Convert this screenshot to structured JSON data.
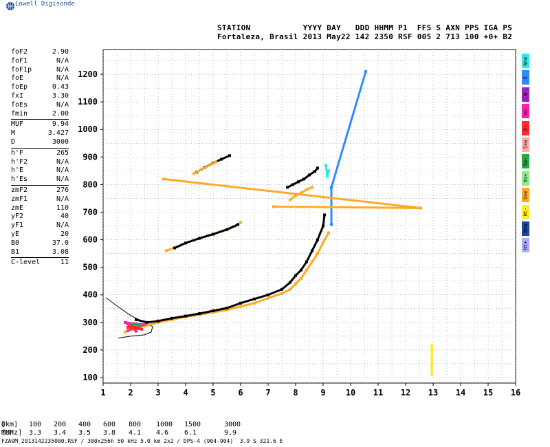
{
  "brand": {
    "name": "Lowell Digisonde"
  },
  "header": {
    "line1": "STATION           YYYY DAY   DDD HHMM P1  FFS S AXN PPS IGA PS",
    "line2": "Fortaleza, Brasil 2013 May22 142 2350 RSF 005 2 713 100 +0+ B2"
  },
  "params": {
    "group1": [
      {
        "label": "foF2",
        "value": "2.90"
      },
      {
        "label": "foF1",
        "value": "N/A"
      },
      {
        "label": "foF1p",
        "value": "N/A"
      },
      {
        "label": "foE",
        "value": "N/A"
      },
      {
        "label": "foEp",
        "value": "0.43"
      },
      {
        "label": "fxI",
        "value": "3.30"
      },
      {
        "label": "foEs",
        "value": "N/A"
      },
      {
        "label": "fmin",
        "value": "2.00"
      }
    ],
    "group2": [
      {
        "label": "MUF",
        "value": "9.94"
      },
      {
        "label": "M",
        "value": "3.427"
      },
      {
        "label": "D",
        "value": "3000"
      }
    ],
    "group3": [
      {
        "label": "h'F",
        "value": "265"
      },
      {
        "label": "h'F2",
        "value": "N/A"
      },
      {
        "label": "h'E",
        "value": "N/A"
      },
      {
        "label": "h'Es",
        "value": "N/A"
      }
    ],
    "group4": [
      {
        "label": "zmF2",
        "value": "276"
      },
      {
        "label": "zmF1",
        "value": "N/A"
      },
      {
        "label": "zmE",
        "value": "110"
      },
      {
        "label": "yF2",
        "value": "40"
      },
      {
        "label": "yF1",
        "value": "N/A"
      },
      {
        "label": "yE",
        "value": "20"
      },
      {
        "label": "B0",
        "value": "37.0"
      },
      {
        "label": "B1",
        "value": "3.08"
      }
    ],
    "group5": [
      {
        "label": "C-level",
        "value": "11"
      }
    ]
  },
  "legend": [
    {
      "label": "Nne",
      "color": "#33e6e6"
    },
    {
      "label": "E",
      "color": "#2a8cff"
    },
    {
      "label": "W",
      "color": "#9922bb"
    },
    {
      "label": "Vo-",
      "color": "#ff22aa"
    },
    {
      "label": "X-",
      "color": "#ff2a2a"
    },
    {
      "label": "Ssw",
      "color": "#ffaaaa"
    },
    {
      "label": "Vo-",
      "color": "#22aa44"
    },
    {
      "label": "Vo+",
      "color": "#88ee88"
    },
    {
      "label": "Sse",
      "color": "#ffaa22"
    },
    {
      "label": "Ht-",
      "color": "#ffee22"
    },
    {
      "label": "Nnw",
      "color": "#1a4aa0"
    },
    {
      "label": "Ht+",
      "color": "#aaaaff"
    }
  ],
  "muf_table": {
    "row1": {
      "label": "D",
      "values": [
        "100",
        "200",
        "400",
        "600",
        "800",
        "1000",
        "1500",
        "3000"
      ],
      "unit": "[km]"
    },
    "row2": {
      "label": "MUF",
      "values": [
        "3.3",
        "3.4",
        "3.5",
        "3.8",
        "4.1",
        "4.6",
        "6.1",
        "9.9"
      ],
      "unit": "[MHz]"
    }
  },
  "footer": "FZA0M_2013142235000.RSF / 300x256h 50 kHz 5.0 km 2x2 / DPS-4 (904-904)  3.9 S 321.6 E",
  "colors": {
    "orange": "#ffaa22",
    "yellow": "#ffee22",
    "black": "#000000",
    "cyan": "#33e6e6",
    "blue": "#2a8cff",
    "magenta": "#ff22aa",
    "red": "#ff2a2a",
    "green": "#22aa44",
    "purple": "#9922bb"
  },
  "chart_data": {
    "type": "scatter",
    "xlim": [
      1,
      16
    ],
    "ylim": [
      80,
      1290
    ],
    "x_ticks": [
      1,
      2,
      3,
      4,
      5,
      6,
      7,
      8,
      9,
      10,
      11,
      12,
      13,
      14,
      15,
      16
    ],
    "y_ticks": [
      100,
      200,
      300,
      400,
      500,
      600,
      700,
      800,
      900,
      1000,
      1100,
      1200
    ],
    "grid": true,
    "profile_curve": [
      [
        1.1,
        390
      ],
      [
        1.5,
        360
      ],
      [
        2.0,
        325
      ],
      [
        2.5,
        300
      ],
      [
        2.8,
        285
      ],
      [
        2.75,
        265
      ],
      [
        2.5,
        255
      ],
      [
        2.0,
        250
      ],
      [
        1.55,
        243
      ]
    ],
    "traces": [
      {
        "name": "O-trace F",
        "color": "#ffaa22",
        "points": [
          [
            1.8,
            265
          ],
          [
            2.0,
            272
          ],
          [
            2.3,
            280
          ],
          [
            2.6,
            290
          ],
          [
            3.0,
            300
          ],
          [
            3.5,
            310
          ],
          [
            4.0,
            320
          ],
          [
            4.5,
            328
          ],
          [
            5.0,
            337
          ],
          [
            5.5,
            345
          ],
          [
            6.0,
            358
          ],
          [
            6.5,
            370
          ],
          [
            7.0,
            388
          ],
          [
            7.5,
            405
          ],
          [
            7.8,
            420
          ],
          [
            8.0,
            440
          ],
          [
            8.2,
            460
          ],
          [
            8.4,
            490
          ],
          [
            8.6,
            520
          ],
          [
            8.8,
            550
          ],
          [
            9.0,
            590
          ],
          [
            9.2,
            625
          ]
        ]
      },
      {
        "name": "X-trace F",
        "color": "#000000",
        "points": [
          [
            2.2,
            310
          ],
          [
            2.6,
            300
          ],
          [
            3.0,
            305
          ],
          [
            3.5,
            315
          ],
          [
            4.0,
            323
          ],
          [
            4.5,
            332
          ],
          [
            5.0,
            342
          ],
          [
            5.5,
            352
          ],
          [
            6.0,
            370
          ],
          [
            6.5,
            385
          ],
          [
            7.0,
            400
          ],
          [
            7.5,
            420
          ],
          [
            7.8,
            445
          ],
          [
            8.0,
            470
          ],
          [
            8.2,
            490
          ],
          [
            8.4,
            520
          ],
          [
            8.6,
            560
          ],
          [
            8.8,
            600
          ],
          [
            9.0,
            650
          ],
          [
            9.05,
            690
          ]
        ]
      },
      {
        "name": "2F O",
        "color": "#ffaa22",
        "points": [
          [
            3.3,
            560
          ],
          [
            3.8,
            580
          ],
          [
            4.3,
            598
          ],
          [
            4.8,
            614
          ],
          [
            5.3,
            630
          ],
          [
            5.8,
            648
          ],
          [
            6.0,
            662
          ]
        ]
      },
      {
        "name": "2F X",
        "color": "#000000",
        "points": [
          [
            3.6,
            570
          ],
          [
            4.0,
            588
          ],
          [
            4.5,
            605
          ],
          [
            5.0,
            620
          ],
          [
            5.5,
            637
          ],
          [
            5.9,
            655
          ]
        ]
      },
      {
        "name": "3F",
        "color": "#000000",
        "points": [
          [
            4.4,
            845
          ],
          [
            4.7,
            862
          ],
          [
            5.0,
            878
          ],
          [
            5.3,
            892
          ],
          [
            5.6,
            905
          ]
        ]
      },
      {
        "name": "3F O",
        "color": "#ffaa22",
        "points": [
          [
            4.3,
            840
          ],
          [
            4.6,
            856
          ],
          [
            5.1,
            882
          ]
        ]
      },
      {
        "name": "upper cluster",
        "color": "#000000",
        "points": [
          [
            7.7,
            790
          ],
          [
            7.9,
            800
          ],
          [
            8.1,
            810
          ],
          [
            8.3,
            820
          ],
          [
            8.5,
            835
          ],
          [
            8.7,
            848
          ],
          [
            8.8,
            860
          ]
        ]
      },
      {
        "name": "upper cluster O",
        "color": "#ffaa22",
        "points": [
          [
            7.8,
            745
          ],
          [
            8.0,
            760
          ],
          [
            8.2,
            770
          ],
          [
            8.4,
            782
          ],
          [
            8.6,
            790
          ]
        ]
      },
      {
        "name": "vertical line",
        "color": "#ffee22",
        "points": [
          [
            12.95,
            110
          ],
          [
            12.95,
            140
          ],
          [
            12.95,
            170
          ],
          [
            12.95,
            200
          ],
          [
            12.95,
            215
          ]
        ]
      },
      {
        "name": "misc blue",
        "color": "#2a8cff",
        "points": [
          [
            10.55,
            1210
          ],
          [
            9.3,
            790
          ],
          [
            9.3,
            655
          ]
        ]
      },
      {
        "name": "misc cyan",
        "color": "#33e6e6",
        "points": [
          [
            9.2,
            850
          ],
          [
            9.15,
            830
          ],
          [
            9.1,
            870
          ]
        ]
      },
      {
        "name": "low cluster",
        "color": "#ff22aa",
        "points": [
          [
            1.9,
            270
          ],
          [
            2.1,
            280
          ],
          [
            2.3,
            285
          ],
          [
            2.5,
            292
          ],
          [
            1.8,
            300
          ],
          [
            2.2,
            268
          ]
        ]
      },
      {
        "name": "low cluster red",
        "color": "#ff2a2a",
        "points": [
          [
            2.0,
            290
          ],
          [
            2.4,
            275
          ],
          [
            1.9,
            282
          ]
        ]
      },
      {
        "name": "low cluster green",
        "color": "#22aa44",
        "points": [
          [
            2.05,
            295
          ],
          [
            2.35,
            288
          ]
        ]
      },
      {
        "name": "stray",
        "color": "#ffaa22",
        "points": [
          [
            3.2,
            820
          ],
          [
            12.55,
            715
          ],
          [
            7.2,
            720
          ]
        ]
      }
    ]
  }
}
